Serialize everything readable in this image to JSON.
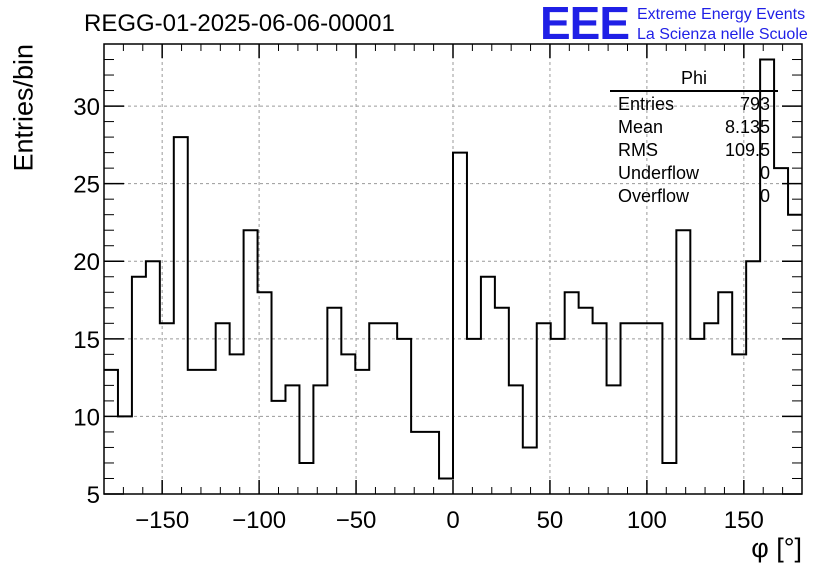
{
  "title": "REGG-01-2025-06-06-00001",
  "logo": {
    "mark": "EEE",
    "line1": "Extreme Energy Events",
    "line2": "La Scienza nelle Scuole",
    "color": "#1f1fe6"
  },
  "stats": {
    "name": "Phi",
    "rows": [
      {
        "label": "Entries",
        "value": "793"
      },
      {
        "label": "Mean",
        "value": "8.135"
      },
      {
        "label": "RMS",
        "value": "109.5"
      },
      {
        "label": "Underflow",
        "value": "0"
      },
      {
        "label": "Overflow",
        "value": "0"
      }
    ]
  },
  "chart_data": {
    "type": "histogram",
    "title": "REGG-01-2025-06-06-00001",
    "xlabel": "φ [°]",
    "ylabel": "Entries/bin",
    "xlim": [
      -180,
      180
    ],
    "ylim": [
      5,
      34
    ],
    "bin_width": 7.2,
    "grid": true,
    "bin_edges_start": -180,
    "values": [
      13,
      10,
      19,
      20,
      16,
      28,
      13,
      13,
      16,
      14,
      22,
      18,
      11,
      12,
      7,
      12,
      17,
      14,
      13,
      16,
      16,
      15,
      9,
      9,
      6,
      27,
      15,
      19,
      17,
      12,
      8,
      16,
      15,
      18,
      17,
      16,
      12,
      16,
      16,
      16,
      7,
      22,
      15,
      16,
      18,
      14,
      20,
      33,
      26,
      23
    ],
    "x_ticks": [
      -150,
      -100,
      -50,
      0,
      50,
      100,
      150
    ],
    "x_tick_labels": [
      "−150",
      "−100",
      "−50",
      "0",
      "50",
      "100",
      "150"
    ],
    "y_ticks": [
      5,
      10,
      15,
      20,
      25,
      30
    ],
    "y_tick_labels": [
      "5",
      "10",
      "15",
      "20",
      "25",
      "30"
    ]
  }
}
